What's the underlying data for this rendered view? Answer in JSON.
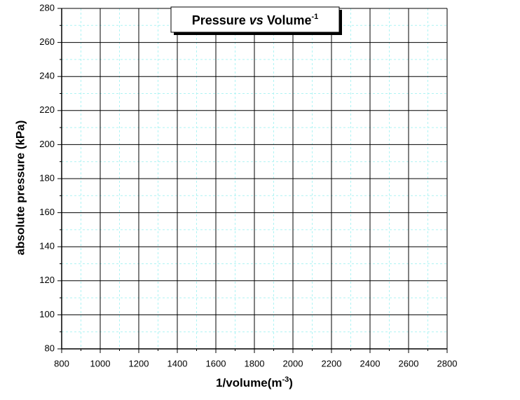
{
  "chart_data": {
    "type": "scatter",
    "title": [
      {
        "text": "Pressure",
        "style": "normal"
      },
      {
        "text": "vs",
        "style": "italic"
      },
      {
        "text": "Volume",
        "style": "normal"
      },
      {
        "text": "-1",
        "style": "superscript"
      }
    ],
    "x_label": [
      {
        "text": "1/volume(m",
        "style": "normal"
      },
      {
        "text": "-3",
        "style": "superscript"
      },
      {
        "text": ")",
        "style": "normal"
      }
    ],
    "y_label": "absolute pressure (kPa)",
    "series": [],
    "xlim": [
      800,
      2800
    ],
    "xticks": [
      800,
      1000,
      1200,
      1400,
      1600,
      1800,
      2000,
      2200,
      2400,
      2600,
      2800
    ],
    "xminorticks": [
      900,
      1100,
      1300,
      1500,
      1700,
      1900,
      2100,
      2300,
      2500,
      2700
    ],
    "ylim": [
      80,
      280
    ],
    "yticks": [
      80,
      100,
      120,
      140,
      160,
      180,
      200,
      220,
      240,
      260,
      280
    ],
    "yminorticks": [
      90,
      110,
      130,
      150,
      170,
      190,
      210,
      230,
      250,
      270
    ],
    "grid": true,
    "grid_color": "#000000",
    "minor_grid_color": "#aef4f4"
  }
}
